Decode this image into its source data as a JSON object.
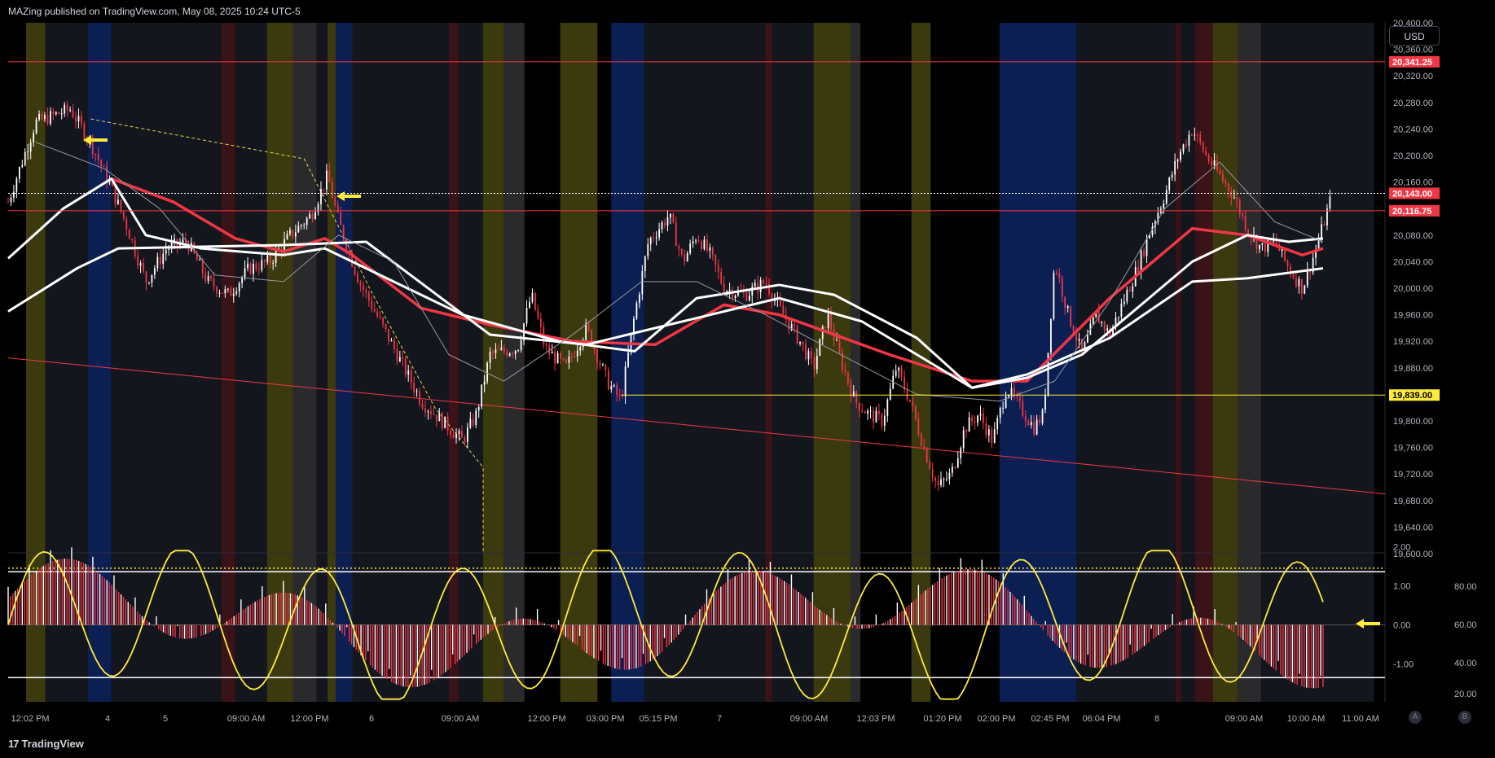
{
  "header": {
    "publisher": "MAZing published on TradingView.com, May 08, 2025 10:24 UTC-5"
  },
  "footer": {
    "brand": "TradingView",
    "logo": "17"
  },
  "currency": "USD",
  "scale_buttons": [
    "A",
    "B"
  ],
  "colors": {
    "background": "#000000",
    "bull": "#ffffff",
    "bear": "#f23645",
    "yellow_band": "#3b3a0f",
    "blue_band": "#0c1f52",
    "gray_band": "#2a2a2c",
    "red_band": "#3a1318",
    "dark_band": "#14161e",
    "hline_red": "#f23645",
    "hline_yellow": "#ffeb3b",
    "osc_line": "#ffeb3b"
  },
  "chart_data": [
    {
      "type": "candlestick",
      "title": "",
      "price_axis": {
        "ticks": [
          "20,400.00",
          "20,360.00",
          "20,320.00",
          "20,280.00",
          "20,240.00",
          "20,200.00",
          "20,160.00",
          "20,080.00",
          "20,040.00",
          "20,000.00",
          "19,960.00",
          "19,920.00",
          "19,880.00",
          "19,800.00",
          "19,760.00",
          "19,720.00",
          "19,680.00",
          "19,640.00",
          "19,600.00"
        ],
        "ylim": [
          19600,
          20400
        ]
      },
      "time_axis": [
        "12:02 PM",
        "4",
        "5",
        "09:00 AM",
        "12:00 PM",
        "6",
        "09:00 AM",
        "12:00 PM",
        "03:00 PM",
        "05:15 PM",
        "7",
        "09:00 AM",
        "12:03 PM",
        "01:20 PM",
        "02:00 PM",
        "02:45 PM",
        "06:04 PM",
        "8",
        "09:00 AM",
        "10:00 AM",
        "11:00 AM"
      ],
      "price_labels": [
        {
          "text": "20,341.25",
          "value": 20341.25,
          "color": "red"
        },
        {
          "text": "20,143.00",
          "value": 20143.0,
          "color": "red"
        },
        {
          "text": "20,116.75",
          "value": 20116.75,
          "color": "red"
        },
        {
          "text": "19,839.00",
          "value": 19839.0,
          "color": "yellow"
        }
      ],
      "horizontal_lines": [
        {
          "value": 20341.25,
          "color": "red"
        },
        {
          "value": 20116.75,
          "color": "red"
        },
        {
          "value": 20143.0,
          "color": "white",
          "style": "dotted"
        },
        {
          "value": 19839.0,
          "color": "yellow",
          "from_index": 0.445
        }
      ],
      "trendline": {
        "from": [
          0,
          19895
        ],
        "to": [
          1,
          19690
        ],
        "color": "red"
      },
      "price_path": [
        [
          0,
          20130
        ],
        [
          0.02,
          20250
        ],
        [
          0.045,
          20270
        ],
        [
          0.06,
          20220
        ],
        [
          0.075,
          20150
        ],
        [
          0.085,
          20100
        ],
        [
          0.1,
          20010
        ],
        [
          0.115,
          20060
        ],
        [
          0.13,
          20070
        ],
        [
          0.145,
          20010
        ],
        [
          0.16,
          19990
        ],
        [
          0.175,
          20030
        ],
        [
          0.19,
          20040
        ],
        [
          0.205,
          20080
        ],
        [
          0.22,
          20110
        ],
        [
          0.232,
          20170
        ],
        [
          0.24,
          20100
        ],
        [
          0.255,
          20010
        ],
        [
          0.27,
          19950
        ],
        [
          0.285,
          19890
        ],
        [
          0.3,
          19830
        ],
        [
          0.315,
          19800
        ],
        [
          0.33,
          19770
        ],
        [
          0.34,
          19810
        ],
        [
          0.35,
          19900
        ],
        [
          0.37,
          19910
        ],
        [
          0.38,
          19990
        ],
        [
          0.39,
          19910
        ],
        [
          0.405,
          19880
        ],
        [
          0.42,
          19940
        ],
        [
          0.435,
          19860
        ],
        [
          0.445,
          19830
        ],
        [
          0.455,
          19960
        ],
        [
          0.465,
          20070
        ],
        [
          0.48,
          20110
        ],
        [
          0.49,
          20040
        ],
        [
          0.5,
          20080
        ],
        [
          0.51,
          20050
        ],
        [
          0.52,
          20000
        ],
        [
          0.535,
          19990
        ],
        [
          0.55,
          20010
        ],
        [
          0.56,
          19970
        ],
        [
          0.575,
          19920
        ],
        [
          0.585,
          19880
        ],
        [
          0.595,
          19960
        ],
        [
          0.605,
          19890
        ],
        [
          0.615,
          19830
        ],
        [
          0.625,
          19810
        ],
        [
          0.635,
          19800
        ],
        [
          0.645,
          19880
        ],
        [
          0.655,
          19830
        ],
        [
          0.665,
          19760
        ],
        [
          0.675,
          19700
        ],
        [
          0.685,
          19720
        ],
        [
          0.695,
          19790
        ],
        [
          0.705,
          19810
        ],
        [
          0.715,
          19770
        ],
        [
          0.725,
          19850
        ],
        [
          0.735,
          19820
        ],
        [
          0.745,
          19790
        ],
        [
          0.752,
          19810
        ],
        [
          0.76,
          20040
        ],
        [
          0.77,
          19960
        ],
        [
          0.78,
          19900
        ],
        [
          0.79,
          19960
        ],
        [
          0.8,
          19930
        ],
        [
          0.81,
          19980
        ],
        [
          0.82,
          20030
        ],
        [
          0.83,
          20090
        ],
        [
          0.84,
          20140
        ],
        [
          0.85,
          20200
        ],
        [
          0.86,
          20240
        ],
        [
          0.87,
          20200
        ],
        [
          0.88,
          20170
        ],
        [
          0.89,
          20140
        ],
        [
          0.9,
          20090
        ],
        [
          0.91,
          20060
        ],
        [
          0.92,
          20070
        ],
        [
          0.93,
          20030
        ],
        [
          0.94,
          20000
        ],
        [
          0.95,
          20060
        ],
        [
          0.96,
          20130
        ]
      ],
      "moving_averages": [
        {
          "name": "",
          "color": "red",
          "points": [
            [
              0.075,
              20165
            ],
            [
              0.12,
              20130
            ],
            [
              0.165,
              20075
            ],
            [
              0.2,
              20055
            ],
            [
              0.23,
              20075
            ],
            [
              0.25,
              20050
            ],
            [
              0.3,
              19970
            ],
            [
              0.35,
              19945
            ],
            [
              0.41,
              19920
            ],
            [
              0.47,
              19915
            ],
            [
              0.52,
              19975
            ],
            [
              0.56,
              19960
            ],
            [
              0.6,
              19930
            ],
            [
              0.64,
              19900
            ],
            [
              0.7,
              19860
            ],
            [
              0.74,
              19860
            ],
            [
              0.8,
              19985
            ],
            [
              0.86,
              20090
            ],
            [
              0.9,
              20080
            ],
            [
              0.94,
              20050
            ],
            [
              0.955,
              20060
            ]
          ]
        },
        {
          "name": "",
          "color": "white",
          "points": [
            [
              0,
              20045
            ],
            [
              0.04,
              20120
            ],
            [
              0.075,
              20165
            ],
            [
              0.1,
              20080
            ],
            [
              0.14,
              20060
            ],
            [
              0.2,
              20050
            ],
            [
              0.23,
              20060
            ],
            [
              0.33,
              19960
            ],
            [
              0.4,
              19920
            ],
            [
              0.455,
              19905
            ],
            [
              0.5,
              19985
            ],
            [
              0.56,
              20005
            ],
            [
              0.6,
              19990
            ],
            [
              0.66,
              19925
            ],
            [
              0.7,
              19850
            ],
            [
              0.74,
              19865
            ],
            [
              0.78,
              19900
            ],
            [
              0.82,
              19970
            ],
            [
              0.86,
              20040
            ],
            [
              0.9,
              20080
            ],
            [
              0.93,
              20070
            ],
            [
              0.955,
              20075
            ]
          ]
        },
        {
          "name": "",
          "color": "white",
          "points": [
            [
              0,
              19965
            ],
            [
              0.05,
              20030
            ],
            [
              0.08,
              20060
            ],
            [
              0.2,
              20065
            ],
            [
              0.26,
              20070
            ],
            [
              0.35,
              19930
            ],
            [
              0.42,
              19915
            ],
            [
              0.5,
              19955
            ],
            [
              0.56,
              19985
            ],
            [
              0.62,
              19950
            ],
            [
              0.7,
              19850
            ],
            [
              0.74,
              19870
            ],
            [
              0.8,
              19925
            ],
            [
              0.86,
              20010
            ],
            [
              0.9,
              20015
            ],
            [
              0.955,
              20030
            ]
          ]
        },
        {
          "name": "",
          "color": "gray",
          "points": [
            [
              0.02,
              20220
            ],
            [
              0.07,
              20180
            ],
            [
              0.11,
              20120
            ],
            [
              0.15,
              20020
            ],
            [
              0.2,
              20010
            ],
            [
              0.24,
              20080
            ],
            [
              0.28,
              20040
            ],
            [
              0.32,
              19900
            ],
            [
              0.36,
              19860
            ],
            [
              0.41,
              19930
            ],
            [
              0.46,
              20010
            ],
            [
              0.5,
              20010
            ],
            [
              0.55,
              19960
            ],
            [
              0.6,
              19905
            ],
            [
              0.66,
              19840
            ],
            [
              0.72,
              19830
            ],
            [
              0.76,
              19860
            ],
            [
              0.8,
              19980
            ],
            [
              0.84,
              20120
            ],
            [
              0.88,
              20190
            ],
            [
              0.92,
              20100
            ],
            [
              0.955,
              20070
            ]
          ]
        }
      ]
    },
    {
      "type": "oscillator",
      "title": "",
      "left_axis": {
        "ticks": [
          "2.00",
          "1.00",
          "0.00",
          "-1.00"
        ]
      },
      "right_axis": {
        "ticks": [
          "80.00",
          "60.00",
          "40.00",
          "20.00"
        ]
      },
      "levels": [
        {
          "value": 1.45,
          "style": "dotted",
          "color": "yellow"
        },
        {
          "value": 1.36,
          "color": "white"
        },
        {
          "value": -1.35,
          "color": "white"
        }
      ]
    }
  ],
  "annotations": {
    "arrows": [
      "yellow-arrow-left",
      "yellow-arrow-left",
      "yellow-arrow-left"
    ]
  }
}
